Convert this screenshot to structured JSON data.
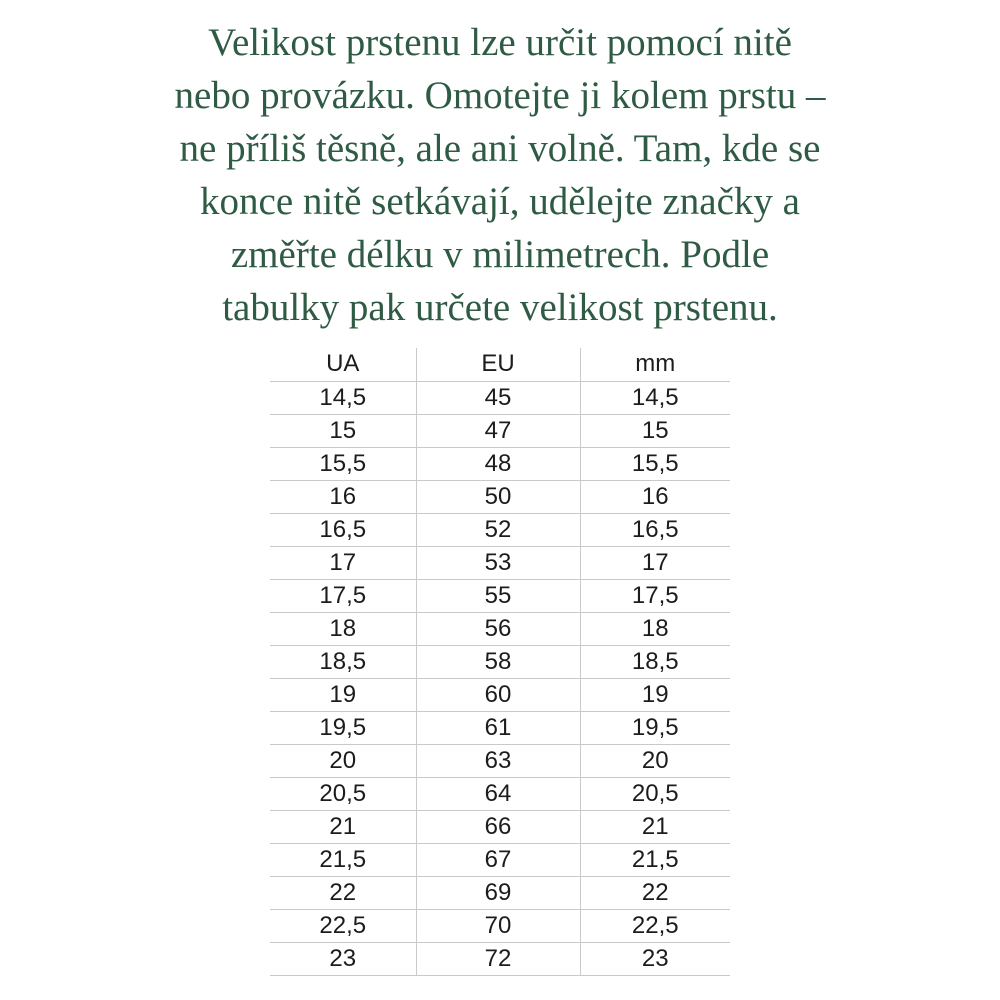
{
  "colors": {
    "paragraph_green": "#2f5b44",
    "table_text": "#1c1c1c",
    "grid_line": "#c9c9c9",
    "background": "#ffffff"
  },
  "paragraph": {
    "lines": [
      "Velikost prstenu lze určit pomocí nitě",
      "nebo provázku. Omotejte ji kolem prstu –",
      "ne příliš těsně, ale ani volně. Tam, kde se",
      "konce nitě setkávají, udělejte značky a",
      "změřte délku v milimetrech. Podle",
      "tabulky pak určete velikost prstenu."
    ]
  },
  "table": {
    "headers": [
      "UA",
      "EU",
      "mm"
    ],
    "rows": [
      [
        "14,5",
        "45",
        "14,5"
      ],
      [
        "15",
        "47",
        "15"
      ],
      [
        "15,5",
        "48",
        "15,5"
      ],
      [
        "16",
        "50",
        "16"
      ],
      [
        "16,5",
        "52",
        "16,5"
      ],
      [
        "17",
        "53",
        "17"
      ],
      [
        "17,5",
        "55",
        "17,5"
      ],
      [
        "18",
        "56",
        "18"
      ],
      [
        "18,5",
        "58",
        "18,5"
      ],
      [
        "19",
        "60",
        "19"
      ],
      [
        "19,5",
        "61",
        "19,5"
      ],
      [
        "20",
        "63",
        "20"
      ],
      [
        "20,5",
        "64",
        "20,5"
      ],
      [
        "21",
        "66",
        "21"
      ],
      [
        "21,5",
        "67",
        "21,5"
      ],
      [
        "22",
        "69",
        "22"
      ],
      [
        "22,5",
        "70",
        "22,5"
      ],
      [
        "23",
        "72",
        "23"
      ]
    ]
  }
}
